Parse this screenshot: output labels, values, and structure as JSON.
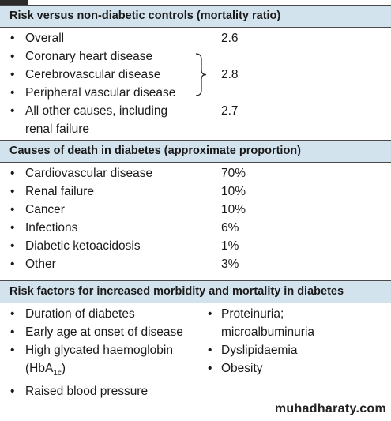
{
  "sections": [
    {
      "title": "Risk versus non-diabetic controls (mortality ratio)",
      "rows": [
        {
          "items": [
            "Overall"
          ],
          "value": "2.6"
        },
        {
          "items": [
            "Coronary heart disease",
            "Cerebrovascular disease",
            "Peripheral vascular disease"
          ],
          "value": "2.8"
        },
        {
          "items": [
            "All other causes, including renal failure"
          ],
          "value": "2.7"
        }
      ]
    },
    {
      "title": "Causes of death in diabetes (approximate proportion)",
      "rows": [
        {
          "items": [
            "Cardiovascular disease"
          ],
          "value": "70%"
        },
        {
          "items": [
            "Renal failure"
          ],
          "value": "10%"
        },
        {
          "items": [
            "Cancer"
          ],
          "value": "10%"
        },
        {
          "items": [
            "Infections"
          ],
          "value": "6%"
        },
        {
          "items": [
            "Diabetic ketoacidosis"
          ],
          "value": "1%"
        },
        {
          "items": [
            "Other"
          ],
          "value": "3%"
        }
      ]
    },
    {
      "title": "Risk factors for increased morbidity and mortality in diabetes",
      "left": [
        {
          "text": "Duration of diabetes"
        },
        {
          "text": "Early age at onset of disease"
        },
        {
          "text": "High glycated haemoglobin (HbA",
          "sub": "1c",
          "tail": ")"
        },
        {
          "text": "Raised blood pressure"
        }
      ],
      "right": [
        {
          "text": "Proteinuria; microalbuminuria"
        },
        {
          "text": "Dyslipidaemia"
        },
        {
          "text": "Obesity"
        }
      ]
    }
  ],
  "watermark": "muhadharaty.com"
}
